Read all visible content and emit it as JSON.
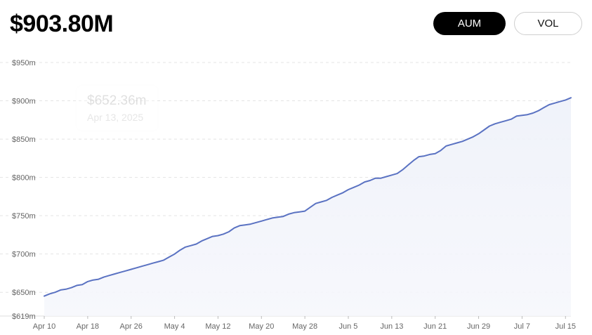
{
  "header": {
    "value": "$903.80M",
    "toggles": [
      {
        "label": "AUM",
        "active": true
      },
      {
        "label": "VOL",
        "active": false
      }
    ]
  },
  "tooltip": {
    "value": "$652.36m",
    "date": "Apr 13, 2025"
  },
  "colors": {
    "line": "#5a72c2",
    "fill": "#eef1f9",
    "grid": "#e4e4e4",
    "active_toggle": "#000000"
  },
  "chart_data": {
    "type": "area",
    "title": "",
    "xlabel": "",
    "ylabel": "",
    "ylim": [
      619,
      950
    ],
    "grid": true,
    "y_ticks": [
      {
        "value": 950,
        "label": "$950m"
      },
      {
        "value": 900,
        "label": "$900m"
      },
      {
        "value": 850,
        "label": "$850m"
      },
      {
        "value": 800,
        "label": "$800m"
      },
      {
        "value": 750,
        "label": "$750m"
      },
      {
        "value": 700,
        "label": "$700m"
      },
      {
        "value": 650,
        "label": "$650m"
      },
      {
        "value": 619,
        "label": "$619m"
      }
    ],
    "x_ticks": [
      {
        "day": 0,
        "label": "Apr 10"
      },
      {
        "day": 8,
        "label": "Apr 18"
      },
      {
        "day": 16,
        "label": "Apr 26"
      },
      {
        "day": 24,
        "label": "May 4"
      },
      {
        "day": 32,
        "label": "May 12"
      },
      {
        "day": 40,
        "label": "May 20"
      },
      {
        "day": 48,
        "label": "May 28"
      },
      {
        "day": 56,
        "label": "Jun 5"
      },
      {
        "day": 64,
        "label": "Jun 13"
      },
      {
        "day": 72,
        "label": "Jun 21"
      },
      {
        "day": 80,
        "label": "Jun 29"
      },
      {
        "day": 88,
        "label": "Jul 7"
      },
      {
        "day": 96,
        "label": "Jul 15"
      }
    ],
    "series": [
      {
        "x": [
          0,
          1,
          2,
          3,
          4,
          5,
          6,
          7,
          8,
          9,
          10,
          11,
          12,
          13,
          14,
          15,
          16,
          17,
          18,
          19,
          20,
          21,
          22,
          23,
          24,
          25,
          26,
          27,
          28,
          29,
          30,
          31,
          32,
          33,
          34,
          35,
          36,
          37,
          38,
          39,
          40,
          41,
          42,
          43,
          44,
          45,
          46,
          47,
          48,
          49,
          50,
          51,
          52,
          53,
          54,
          55,
          56,
          57,
          58,
          59,
          60,
          61,
          62,
          63,
          64,
          65,
          66,
          67,
          68,
          69,
          70,
          71,
          72,
          73,
          74,
          75,
          76,
          77,
          78,
          79,
          80,
          81,
          82,
          83,
          84,
          85,
          86,
          87,
          88,
          89,
          90,
          91,
          92,
          93,
          94,
          95,
          96,
          97
        ],
        "values": [
          645,
          648,
          650,
          653,
          654,
          656,
          659,
          660,
          664,
          666,
          667,
          670,
          672,
          674,
          676,
          678,
          680,
          682,
          684,
          686,
          688,
          690,
          692,
          696,
          700,
          705,
          709,
          711,
          713,
          717,
          720,
          723,
          724,
          726,
          729,
          734,
          737,
          738,
          739,
          741,
          743,
          745,
          747,
          748,
          749,
          752,
          754,
          755,
          756,
          761,
          766,
          768,
          770,
          774,
          777,
          780,
          784,
          787,
          790,
          794,
          796,
          799,
          799,
          801,
          803,
          805,
          810,
          816,
          822,
          827,
          828,
          830,
          831,
          835,
          841,
          843,
          845,
          847,
          850,
          853,
          857,
          862,
          867,
          870,
          872,
          874,
          876,
          880,
          881,
          882,
          884,
          887,
          891,
          895,
          897,
          899,
          901,
          904
        ]
      }
    ]
  }
}
